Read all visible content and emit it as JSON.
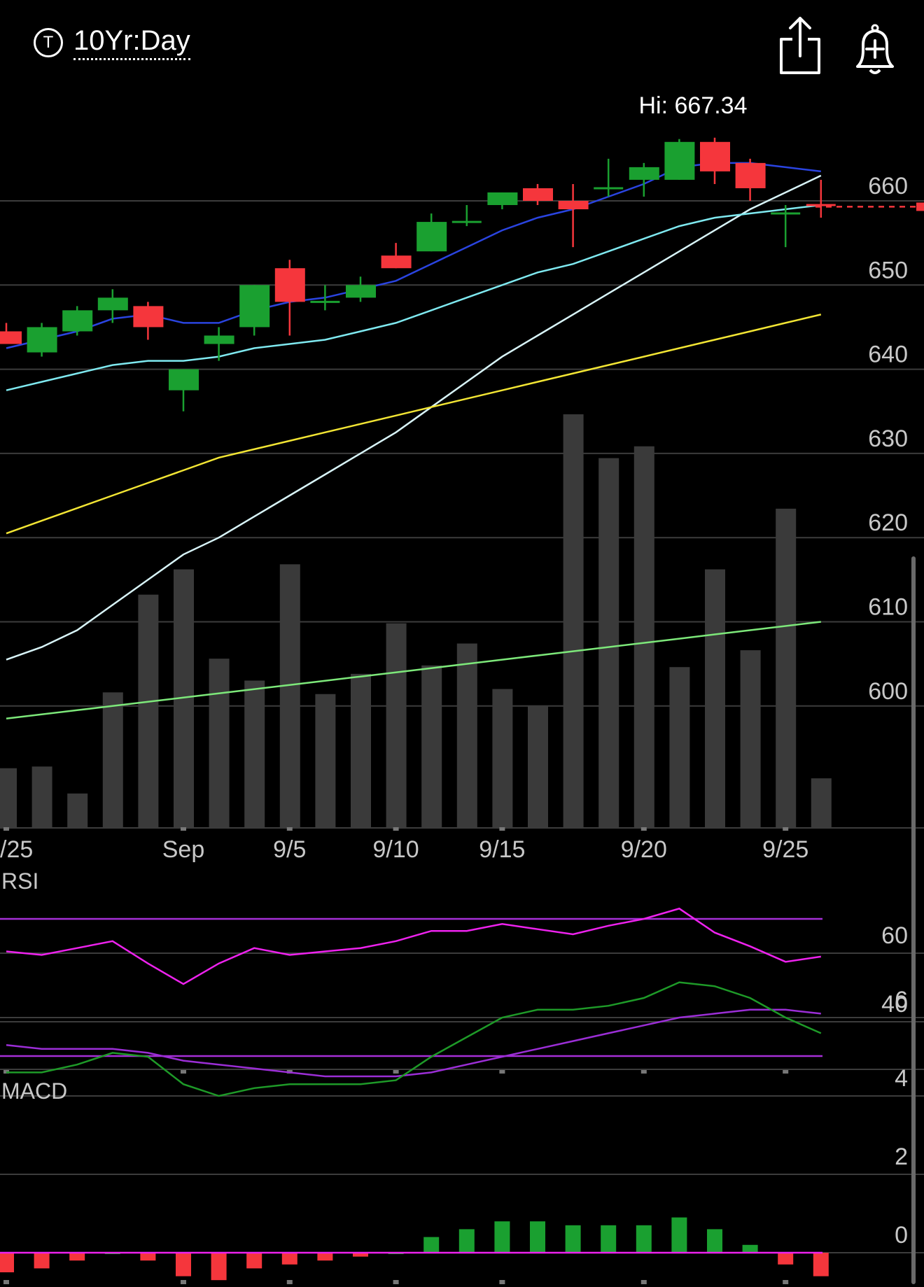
{
  "header": {
    "ticker_icon": "T",
    "title": "10Yr:Day",
    "share_icon": "share-icon",
    "alert_icon": "bell-plus-icon"
  },
  "chart_data": {
    "type": "candlestick",
    "hi_label": "Hi: 667.34",
    "x_labels": [
      {
        "i": 0,
        "text": "/25"
      },
      {
        "i": 5,
        "text": "Sep"
      },
      {
        "i": 8,
        "text": "9/5"
      },
      {
        "i": 11,
        "text": "9/10"
      },
      {
        "i": 14,
        "text": "9/15"
      },
      {
        "i": 18,
        "text": "9/20"
      },
      {
        "i": 22,
        "text": "9/25"
      }
    ],
    "price_panel": {
      "yticks": [
        660,
        650,
        640,
        630,
        620,
        610,
        600
      ],
      "ylim": [
        585.5,
        681
      ],
      "last_price": 659.3,
      "candles": [
        {
          "o": 644.5,
          "h": 645.5,
          "l": 643.0,
          "c": 643.0
        },
        {
          "o": 642.0,
          "h": 645.5,
          "l": 641.5,
          "c": 645.0
        },
        {
          "o": 644.5,
          "h": 647.5,
          "l": 644.0,
          "c": 647.0
        },
        {
          "o": 647.0,
          "h": 649.5,
          "l": 645.5,
          "c": 648.5
        },
        {
          "o": 647.5,
          "h": 648.0,
          "l": 643.5,
          "c": 645.0
        },
        {
          "o": 637.5,
          "h": 640.0,
          "l": 635.0,
          "c": 640.0
        },
        {
          "o": 643.0,
          "h": 645.0,
          "l": 641.0,
          "c": 644.0
        },
        {
          "o": 645.0,
          "h": 650.0,
          "l": 644.0,
          "c": 650.0
        },
        {
          "o": 652.0,
          "h": 653.0,
          "l": 644.0,
          "c": 648.0
        },
        {
          "o": 648.0,
          "h": 650.0,
          "l": 647.0,
          "c": 648.0
        },
        {
          "o": 648.5,
          "h": 651.0,
          "l": 648.0,
          "c": 650.0
        },
        {
          "o": 653.5,
          "h": 655.0,
          "l": 652.0,
          "c": 652.0
        },
        {
          "o": 654.0,
          "h": 658.5,
          "l": 654.0,
          "c": 657.5
        },
        {
          "o": 657.5,
          "h": 659.5,
          "l": 657.0,
          "c": 657.5
        },
        {
          "o": 659.5,
          "h": 661.0,
          "l": 659.0,
          "c": 661.0
        },
        {
          "o": 661.5,
          "h": 662.0,
          "l": 659.5,
          "c": 660.0
        },
        {
          "o": 660.0,
          "h": 662.0,
          "l": 654.5,
          "c": 659.0
        },
        {
          "o": 661.5,
          "h": 665.0,
          "l": 660.5,
          "c": 661.5
        },
        {
          "o": 662.5,
          "h": 664.5,
          "l": 660.5,
          "c": 664.0
        },
        {
          "o": 662.5,
          "h": 667.34,
          "l": 662.5,
          "c": 667.0
        },
        {
          "o": 667.0,
          "h": 667.5,
          "l": 662.0,
          "c": 663.5
        },
        {
          "o": 664.5,
          "h": 665.0,
          "l": 660.0,
          "c": 661.5
        },
        {
          "o": 658.5,
          "h": 659.5,
          "l": 654.5,
          "c": 658.5
        },
        {
          "o": 659.5,
          "h": 662.5,
          "l": 658.0,
          "c": 659.3
        }
      ],
      "volume": [
        735,
        736,
        720,
        780,
        838,
        853,
        800,
        787,
        856,
        779,
        791,
        821,
        796,
        809,
        782,
        772,
        945,
        919,
        926,
        795,
        853,
        805,
        889,
        729
      ],
      "ma_blue": [
        642.5,
        643.5,
        644.5,
        646.0,
        646.5,
        645.5,
        645.5,
        647.0,
        648.0,
        648.5,
        649.5,
        650.5,
        652.5,
        654.5,
        656.5,
        658.0,
        659.0,
        660.5,
        662.0,
        664.0,
        664.5,
        664.5,
        664.0,
        663.5
      ],
      "ma_cyan": [
        637.5,
        638.5,
        639.5,
        640.5,
        641.0,
        641.0,
        641.5,
        642.5,
        643.0,
        643.5,
        644.5,
        645.5,
        647.0,
        648.5,
        650.0,
        651.5,
        652.5,
        654.0,
        655.5,
        657.0,
        658.0,
        658.5,
        659.0,
        659.5
      ],
      "ma_yellow": [
        620.5,
        622.0,
        623.5,
        625.0,
        626.5,
        628.0,
        629.5,
        630.5,
        631.5,
        632.5,
        633.5,
        634.5,
        635.5,
        636.5,
        637.5,
        638.5,
        639.5,
        640.5,
        641.5,
        642.5,
        643.5,
        644.5,
        645.5,
        646.5
      ],
      "ma_white": [
        605.5,
        607.0,
        609.0,
        612.0,
        615.0,
        618.0,
        620.0,
        622.5,
        625.0,
        627.5,
        630.0,
        632.5,
        635.5,
        638.5,
        641.5,
        644.0,
        646.5,
        649.0,
        651.5,
        654.0,
        656.5,
        659.0,
        661.0,
        663.0
      ],
      "ma_green": [
        598.5,
        599.0,
        599.5,
        600.0,
        600.5,
        601.0,
        601.5,
        602.0,
        602.5,
        603.0,
        603.5,
        604.0,
        604.5,
        605.0,
        605.5,
        606.0,
        606.5,
        607.0,
        607.5,
        608.0,
        608.5,
        609.0,
        609.5,
        610.0
      ]
    },
    "rsi_panel": {
      "label": "RSI",
      "yticks": [
        60,
        40
      ],
      "upper_band": 70,
      "lower_band": 30,
      "values": [
        60.5,
        59.5,
        61.5,
        63.5,
        57.0,
        51.0,
        57.0,
        61.5,
        59.5,
        60.5,
        61.5,
        63.5,
        66.5,
        66.5,
        68.5,
        67.0,
        65.5,
        68.0,
        70.0,
        73.0,
        66.0,
        62.0,
        57.5,
        59.0
      ]
    },
    "macd_panel": {
      "label": "MACD",
      "yticks": [
        6,
        4,
        2,
        0
      ],
      "macd": [
        4.6,
        4.6,
        4.8,
        5.1,
        5.0,
        4.3,
        4.0,
        4.2,
        4.3,
        4.3,
        4.3,
        4.4,
        5.0,
        5.5,
        6.0,
        6.2,
        6.2,
        6.3,
        6.5,
        6.9,
        6.8,
        6.5,
        6.0,
        5.6
      ],
      "signal": [
        5.3,
        5.2,
        5.2,
        5.2,
        5.1,
        4.9,
        4.8,
        4.7,
        4.6,
        4.5,
        4.5,
        4.5,
        4.6,
        4.8,
        5.0,
        5.2,
        5.4,
        5.6,
        5.8,
        6.0,
        6.1,
        6.2,
        6.2,
        6.1
      ],
      "histogram": [
        -0.5,
        -0.4,
        -0.2,
        0.0,
        -0.2,
        -0.6,
        -0.7,
        -0.4,
        -0.3,
        -0.2,
        -0.1,
        0.0,
        0.4,
        0.6,
        0.8,
        0.8,
        0.7,
        0.7,
        0.7,
        0.9,
        0.6,
        0.2,
        -0.3,
        -0.6
      ]
    },
    "colors": {
      "up": "#1aa030",
      "down": "#f5363c",
      "volume": "#3a3a3a",
      "grid": "#3c3c3c",
      "axis_text": "#c8c8c8",
      "ma_blue": "#2a44e0",
      "ma_cyan": "#7fe9f0",
      "ma_yellow": "#f2e534",
      "ma_white": "#d8f4f8",
      "ma_green": "#7de87a",
      "rsi_line": "#ee22ee",
      "rsi_band": "#a52fd6",
      "macd_line": "#1e9a28",
      "signal_line": "#9b2ed6"
    }
  }
}
